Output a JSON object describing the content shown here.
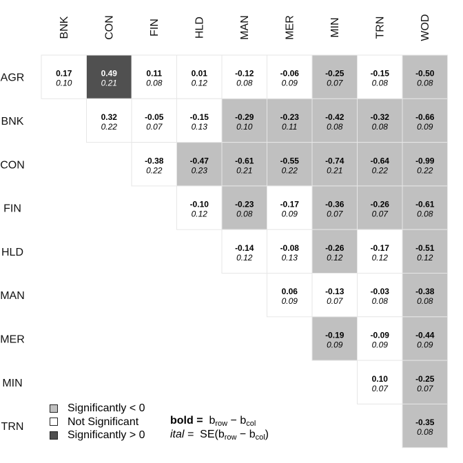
{
  "colors": {
    "negative": "#c0c0c0",
    "nonsignificant": "#ffffff",
    "positive": "#505050",
    "cell_border": "#e6e6e6"
  },
  "chart_data": {
    "type": "heatmap",
    "columns": [
      "BNK",
      "CON",
      "FIN",
      "HLD",
      "MAN",
      "MER",
      "MIN",
      "TRN",
      "WOD"
    ],
    "rows": [
      "AGR",
      "BNK",
      "CON",
      "FIN",
      "HLD",
      "MAN",
      "MER",
      "MIN",
      "TRN"
    ],
    "cells": [
      {
        "row": "AGR",
        "col": "BNK",
        "estimate": "0.17",
        "se": "0.10",
        "sig": "ns"
      },
      {
        "row": "AGR",
        "col": "CON",
        "estimate": "0.49",
        "se": "0.21",
        "sig": "pos"
      },
      {
        "row": "AGR",
        "col": "FIN",
        "estimate": "0.11",
        "se": "0.08",
        "sig": "ns"
      },
      {
        "row": "AGR",
        "col": "HLD",
        "estimate": "0.01",
        "se": "0.12",
        "sig": "ns"
      },
      {
        "row": "AGR",
        "col": "MAN",
        "estimate": "-0.12",
        "se": "0.08",
        "sig": "ns"
      },
      {
        "row": "AGR",
        "col": "MER",
        "estimate": "-0.06",
        "se": "0.09",
        "sig": "ns"
      },
      {
        "row": "AGR",
        "col": "MIN",
        "estimate": "-0.25",
        "se": "0.07",
        "sig": "neg"
      },
      {
        "row": "AGR",
        "col": "TRN",
        "estimate": "-0.15",
        "se": "0.08",
        "sig": "ns"
      },
      {
        "row": "AGR",
        "col": "WOD",
        "estimate": "-0.50",
        "se": "0.08",
        "sig": "neg"
      },
      {
        "row": "BNK",
        "col": "CON",
        "estimate": "0.32",
        "se": "0.22",
        "sig": "ns"
      },
      {
        "row": "BNK",
        "col": "FIN",
        "estimate": "-0.05",
        "se": "0.07",
        "sig": "ns"
      },
      {
        "row": "BNK",
        "col": "HLD",
        "estimate": "-0.15",
        "se": "0.13",
        "sig": "ns"
      },
      {
        "row": "BNK",
        "col": "MAN",
        "estimate": "-0.29",
        "se": "0.10",
        "sig": "neg"
      },
      {
        "row": "BNK",
        "col": "MER",
        "estimate": "-0.23",
        "se": "0.11",
        "sig": "neg"
      },
      {
        "row": "BNK",
        "col": "MIN",
        "estimate": "-0.42",
        "se": "0.08",
        "sig": "neg"
      },
      {
        "row": "BNK",
        "col": "TRN",
        "estimate": "-0.32",
        "se": "0.08",
        "sig": "neg"
      },
      {
        "row": "BNK",
        "col": "WOD",
        "estimate": "-0.66",
        "se": "0.09",
        "sig": "neg"
      },
      {
        "row": "CON",
        "col": "FIN",
        "estimate": "-0.38",
        "se": "0.22",
        "sig": "ns"
      },
      {
        "row": "CON",
        "col": "HLD",
        "estimate": "-0.47",
        "se": "0.23",
        "sig": "neg"
      },
      {
        "row": "CON",
        "col": "MAN",
        "estimate": "-0.61",
        "se": "0.21",
        "sig": "neg"
      },
      {
        "row": "CON",
        "col": "MER",
        "estimate": "-0.55",
        "se": "0.22",
        "sig": "neg"
      },
      {
        "row": "CON",
        "col": "MIN",
        "estimate": "-0.74",
        "se": "0.21",
        "sig": "neg"
      },
      {
        "row": "CON",
        "col": "TRN",
        "estimate": "-0.64",
        "se": "0.22",
        "sig": "neg"
      },
      {
        "row": "CON",
        "col": "WOD",
        "estimate": "-0.99",
        "se": "0.22",
        "sig": "neg"
      },
      {
        "row": "FIN",
        "col": "HLD",
        "estimate": "-0.10",
        "se": "0.12",
        "sig": "ns"
      },
      {
        "row": "FIN",
        "col": "MAN",
        "estimate": "-0.23",
        "se": "0.08",
        "sig": "neg"
      },
      {
        "row": "FIN",
        "col": "MER",
        "estimate": "-0.17",
        "se": "0.09",
        "sig": "ns"
      },
      {
        "row": "FIN",
        "col": "MIN",
        "estimate": "-0.36",
        "se": "0.07",
        "sig": "neg"
      },
      {
        "row": "FIN",
        "col": "TRN",
        "estimate": "-0.26",
        "se": "0.07",
        "sig": "neg"
      },
      {
        "row": "FIN",
        "col": "WOD",
        "estimate": "-0.61",
        "se": "0.08",
        "sig": "neg"
      },
      {
        "row": "HLD",
        "col": "MAN",
        "estimate": "-0.14",
        "se": "0.12",
        "sig": "ns"
      },
      {
        "row": "HLD",
        "col": "MER",
        "estimate": "-0.08",
        "se": "0.13",
        "sig": "ns"
      },
      {
        "row": "HLD",
        "col": "MIN",
        "estimate": "-0.26",
        "se": "0.12",
        "sig": "neg"
      },
      {
        "row": "HLD",
        "col": "TRN",
        "estimate": "-0.17",
        "se": "0.12",
        "sig": "ns"
      },
      {
        "row": "HLD",
        "col": "WOD",
        "estimate": "-0.51",
        "se": "0.12",
        "sig": "neg"
      },
      {
        "row": "MAN",
        "col": "MER",
        "estimate": "0.06",
        "se": "0.09",
        "sig": "ns"
      },
      {
        "row": "MAN",
        "col": "MIN",
        "estimate": "-0.13",
        "se": "0.07",
        "sig": "ns"
      },
      {
        "row": "MAN",
        "col": "TRN",
        "estimate": "-0.03",
        "se": "0.08",
        "sig": "ns"
      },
      {
        "row": "MAN",
        "col": "WOD",
        "estimate": "-0.38",
        "se": "0.08",
        "sig": "neg"
      },
      {
        "row": "MER",
        "col": "MIN",
        "estimate": "-0.19",
        "se": "0.09",
        "sig": "neg"
      },
      {
        "row": "MER",
        "col": "TRN",
        "estimate": "-0.09",
        "se": "0.09",
        "sig": "ns"
      },
      {
        "row": "MER",
        "col": "WOD",
        "estimate": "-0.44",
        "se": "0.09",
        "sig": "neg"
      },
      {
        "row": "MIN",
        "col": "TRN",
        "estimate": "0.10",
        "se": "0.07",
        "sig": "ns"
      },
      {
        "row": "MIN",
        "col": "WOD",
        "estimate": "-0.25",
        "se": "0.07",
        "sig": "neg"
      },
      {
        "row": "TRN",
        "col": "WOD",
        "estimate": "-0.35",
        "se": "0.08",
        "sig": "neg"
      }
    ],
    "legend": {
      "placement": "bottom-left",
      "items": [
        {
          "key": "neg",
          "label": "Significantly < 0"
        },
        {
          "key": "ns",
          "label": "Not Significant"
        },
        {
          "key": "pos",
          "label": "Significantly > 0"
        }
      ]
    },
    "formula": {
      "bold_key": "bold =",
      "ital_key": "ital =",
      "b": "b",
      "row": "row",
      "col": "col",
      "se": "SE(",
      "minus": " − ",
      "close": ")"
    }
  }
}
